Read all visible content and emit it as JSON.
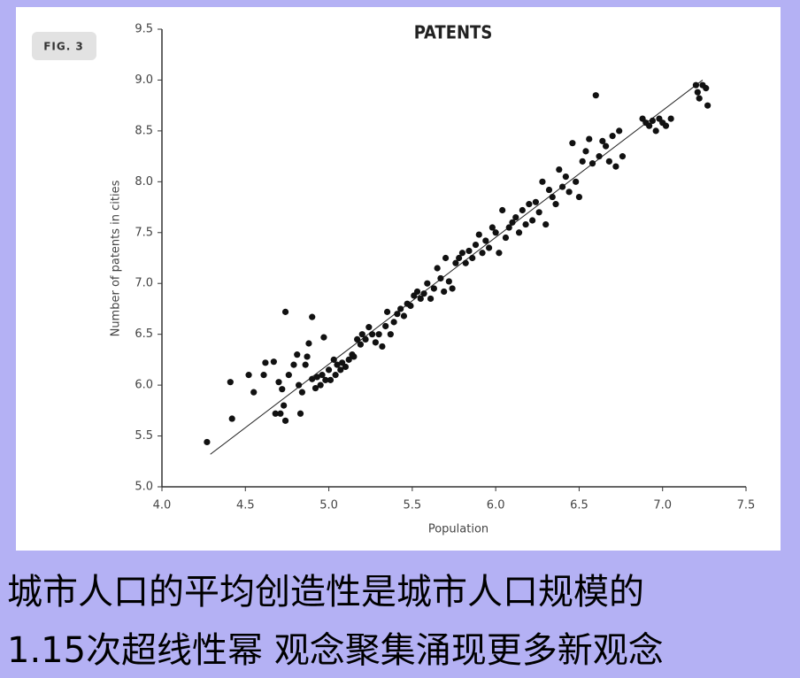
{
  "figure_label": "FIG. 3",
  "caption": {
    "lines": [
      "城市人口的平均创造性是城市人口规模的",
      "1.15次超线性幂 观念聚集涌现更多新观念"
    ]
  },
  "chart_data": {
    "type": "scatter",
    "title": "PATENTS",
    "x_label": "Population",
    "y_label": "Number of patents in cities",
    "color": "#111111",
    "x": [
      4.27,
      4.42,
      4.41,
      4.52,
      4.55,
      4.62,
      4.61,
      4.67,
      4.68,
      4.7,
      4.71,
      4.73,
      4.72,
      4.74,
      4.74,
      4.76,
      4.79,
      4.81,
      4.82,
      4.83,
      4.84,
      4.86,
      4.87,
      4.88,
      4.9,
      4.9,
      4.92,
      4.93,
      4.95,
      4.96,
      4.97,
      4.98,
      5.0,
      5.01,
      5.03,
      5.04,
      5.05,
      5.07,
      5.08,
      5.1,
      5.12,
      5.14,
      5.15,
      5.17,
      5.19,
      5.2,
      5.22,
      5.24,
      5.26,
      5.28,
      5.3,
      5.32,
      5.34,
      5.35,
      5.37,
      5.39,
      5.41,
      5.43,
      5.45,
      5.47,
      5.49,
      5.51,
      5.53,
      5.55,
      5.57,
      5.59,
      5.61,
      5.63,
      5.65,
      5.67,
      5.69,
      5.7,
      5.72,
      5.74,
      5.76,
      5.78,
      5.8,
      5.82,
      5.84,
      5.86,
      5.88,
      5.9,
      5.92,
      5.94,
      5.96,
      5.98,
      6.0,
      6.02,
      6.04,
      6.06,
      6.08,
      6.1,
      6.12,
      6.14,
      6.16,
      6.18,
      6.2,
      6.22,
      6.24,
      6.26,
      6.28,
      6.3,
      6.32,
      6.34,
      6.36,
      6.38,
      6.4,
      6.42,
      6.44,
      6.46,
      6.48,
      6.5,
      6.52,
      6.54,
      6.56,
      6.58,
      6.6,
      6.62,
      6.64,
      6.66,
      6.68,
      6.7,
      6.72,
      6.74,
      6.76,
      6.88,
      6.9,
      6.92,
      6.94,
      6.96,
      6.98,
      7.0,
      7.02,
      7.05,
      7.2,
      7.21,
      7.22,
      7.24,
      7.26,
      7.27
    ],
    "values": [
      5.44,
      5.67,
      6.03,
      6.1,
      5.93,
      6.22,
      6.1,
      6.23,
      5.72,
      6.03,
      5.72,
      5.8,
      5.96,
      6.72,
      5.65,
      6.1,
      6.2,
      6.3,
      6.0,
      5.72,
      5.93,
      6.2,
      6.28,
      6.41,
      6.67,
      6.06,
      5.97,
      6.08,
      6.0,
      6.1,
      6.47,
      6.05,
      6.15,
      6.05,
      6.25,
      6.1,
      6.2,
      6.15,
      6.22,
      6.18,
      6.25,
      6.3,
      6.28,
      6.45,
      6.4,
      6.5,
      6.45,
      6.57,
      6.5,
      6.42,
      6.5,
      6.38,
      6.58,
      6.72,
      6.5,
      6.62,
      6.7,
      6.75,
      6.68,
      6.8,
      6.78,
      6.88,
      6.92,
      6.85,
      6.9,
      7.0,
      6.85,
      6.95,
      7.15,
      7.05,
      6.92,
      7.25,
      7.02,
      6.95,
      7.2,
      7.25,
      7.3,
      7.2,
      7.32,
      7.25,
      7.38,
      7.48,
      7.3,
      7.42,
      7.35,
      7.55,
      7.5,
      7.3,
      7.72,
      7.45,
      7.55,
      7.6,
      7.65,
      7.5,
      7.72,
      7.58,
      7.78,
      7.62,
      7.8,
      7.7,
      8.0,
      7.58,
      7.92,
      7.85,
      7.78,
      8.12,
      7.95,
      8.05,
      7.9,
      8.38,
      8.0,
      7.85,
      8.2,
      8.3,
      8.42,
      8.18,
      8.85,
      8.25,
      8.4,
      8.35,
      8.2,
      8.45,
      8.15,
      8.5,
      8.25,
      8.62,
      8.58,
      8.55,
      8.6,
      8.5,
      8.62,
      8.58,
      8.55,
      8.62,
      8.95,
      8.88,
      8.82,
      8.95,
      8.92,
      8.75
    ],
    "trend_line": {
      "x": [
        4.29,
        7.24
      ],
      "values": [
        5.32,
        9.0
      ]
    },
    "xlim": [
      4.0,
      7.5
    ],
    "xticks": [
      {
        "value": 4,
        "label": "4.0"
      },
      4.5,
      {
        "value": 5,
        "label": "5.0"
      },
      5.5,
      {
        "value": 6,
        "label": "6.0"
      },
      6.5,
      {
        "value": 7,
        "label": "7.0"
      },
      7.5
    ],
    "ylim": [
      5.0,
      9.5
    ],
    "yticks": [
      {
        "value": 5,
        "label": "5.0"
      },
      5.5,
      {
        "value": 6,
        "label": "6.0"
      },
      6.5,
      {
        "value": 7,
        "label": "7.0"
      },
      7.5,
      {
        "value": 8,
        "label": "8.0"
      },
      8.5,
      {
        "value": 9,
        "label": "9.0"
      },
      9.5
    ]
  }
}
